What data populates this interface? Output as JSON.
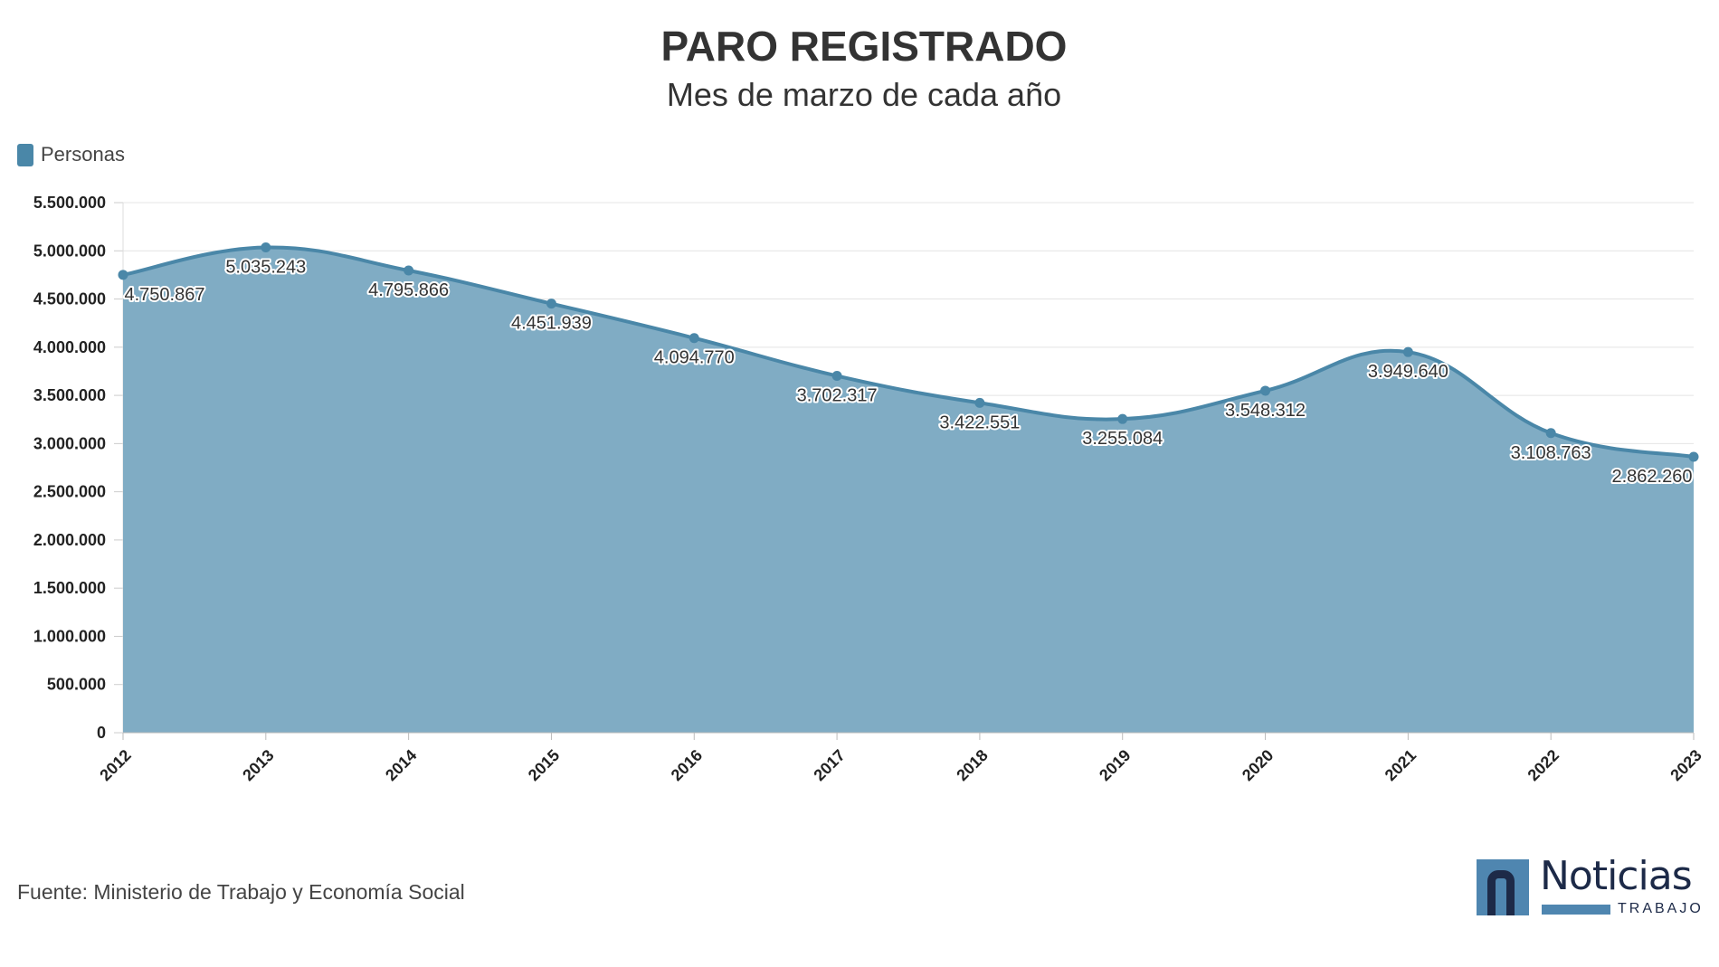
{
  "chart_data": {
    "type": "area",
    "title": "PARO REGISTRADO",
    "subtitle": "Mes de marzo de cada año",
    "legend": {
      "label": "Personas",
      "placement": "top-left"
    },
    "categories": [
      "2012",
      "2013",
      "2014",
      "2015",
      "2016",
      "2017",
      "2018",
      "2019",
      "2020",
      "2021",
      "2022",
      "2023"
    ],
    "series": [
      {
        "name": "Personas",
        "values": [
          4750867,
          5035243,
          4795866,
          4451939,
          4094770,
          3702317,
          3422551,
          3255084,
          3548312,
          3949640,
          3108763,
          2862260
        ],
        "labels": [
          "4.750.867",
          "5.035.243",
          "4.795.866",
          "4.451.939",
          "4.094.770",
          "3.702.317",
          "3.422.551",
          "3.255.084",
          "3.548.312",
          "3.949.640",
          "3.108.763",
          "2.862.260"
        ]
      }
    ],
    "ylim": [
      0,
      5500000
    ],
    "yticks": [
      0,
      500000,
      1000000,
      1500000,
      2000000,
      2500000,
      3000000,
      3500000,
      4000000,
      4500000,
      5000000,
      5500000
    ],
    "ytick_labels": [
      "0",
      "500.000",
      "1.000.000",
      "1.500.000",
      "2.000.000",
      "2.500.000",
      "3.000.000",
      "3.500.000",
      "4.000.000",
      "4.500.000",
      "5.000.000",
      "5.500.000"
    ],
    "xlabel": "",
    "ylabel": "",
    "grid": true,
    "colors": {
      "line": "#4a87a8",
      "fill": "#80acc4",
      "grid": "#e4e4e4"
    }
  },
  "footer": {
    "source": "Fuente: Ministerio de Trabajo y Economía Social"
  },
  "logo": {
    "word": "Noticias",
    "sub": "TRABAJO"
  }
}
